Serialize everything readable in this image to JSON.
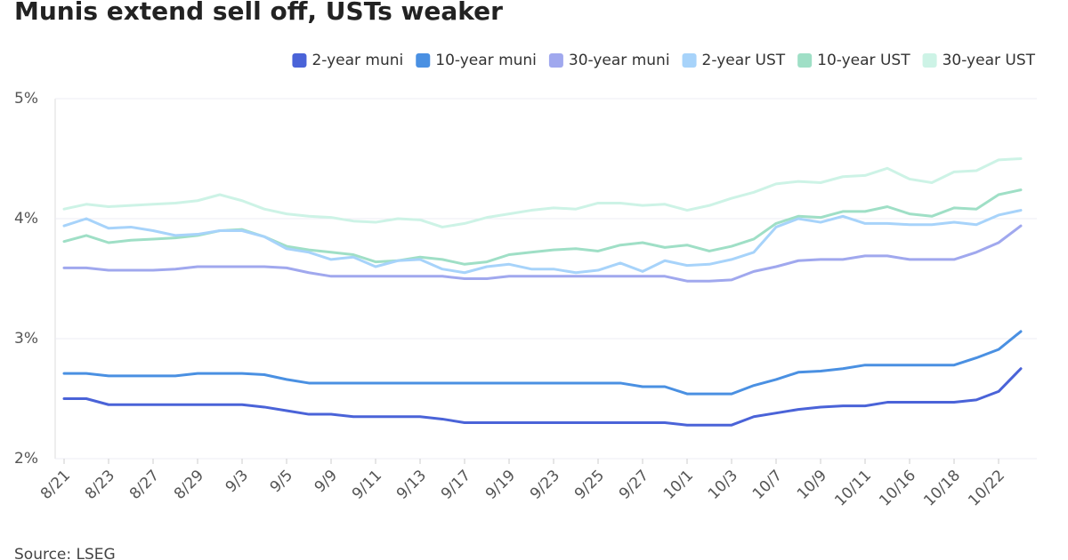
{
  "chart_data": {
    "type": "line",
    "title": "Munis extend sell off, USTs weaker",
    "source": "Source: LSEG",
    "categories": [
      "8/21",
      null,
      "8/23",
      null,
      "8/27",
      null,
      "8/29",
      null,
      "9/3",
      null,
      "9/5",
      null,
      "9/9",
      null,
      "9/11",
      null,
      "9/13",
      null,
      "9/17",
      null,
      "9/19",
      null,
      "9/23",
      null,
      "9/25",
      null,
      "9/27",
      null,
      "10/1",
      null,
      "10/3",
      null,
      "10/7",
      null,
      "10/9",
      null,
      "10/11",
      null,
      "10/16",
      null,
      "10/18",
      null,
      "10/22",
      null
    ],
    "series": [
      {
        "name": "2-year muni",
        "color": "#4a63d8",
        "values": [
          2.5,
          2.5,
          2.45,
          2.45,
          2.45,
          2.45,
          2.45,
          2.45,
          2.45,
          2.43,
          2.4,
          2.37,
          2.37,
          2.35,
          2.35,
          2.35,
          2.35,
          2.33,
          2.3,
          2.3,
          2.3,
          2.3,
          2.3,
          2.3,
          2.3,
          2.3,
          2.3,
          2.3,
          2.28,
          2.28,
          2.28,
          2.35,
          2.38,
          2.41,
          2.43,
          2.44,
          2.44,
          2.47,
          2.47,
          2.47,
          2.47,
          2.49,
          2.56,
          2.75
        ]
      },
      {
        "name": "10-year muni",
        "color": "#4a90e2",
        "values": [
          2.71,
          2.71,
          2.69,
          2.69,
          2.69,
          2.69,
          2.71,
          2.71,
          2.71,
          2.7,
          2.66,
          2.63,
          2.63,
          2.63,
          2.63,
          2.63,
          2.63,
          2.63,
          2.63,
          2.63,
          2.63,
          2.63,
          2.63,
          2.63,
          2.63,
          2.63,
          2.6,
          2.6,
          2.54,
          2.54,
          2.54,
          2.61,
          2.66,
          2.72,
          2.73,
          2.75,
          2.78,
          2.78,
          2.78,
          2.78,
          2.78,
          2.84,
          2.91,
          3.06
        ]
      },
      {
        "name": "30-year muni",
        "color": "#a0a8ee",
        "values": [
          3.59,
          3.59,
          3.57,
          3.57,
          3.57,
          3.58,
          3.6,
          3.6,
          3.6,
          3.6,
          3.59,
          3.55,
          3.52,
          3.52,
          3.52,
          3.52,
          3.52,
          3.52,
          3.5,
          3.5,
          3.52,
          3.52,
          3.52,
          3.52,
          3.52,
          3.52,
          3.52,
          3.52,
          3.48,
          3.48,
          3.49,
          3.56,
          3.6,
          3.65,
          3.66,
          3.66,
          3.69,
          3.69,
          3.66,
          3.66,
          3.66,
          3.72,
          3.8,
          3.94
        ]
      },
      {
        "name": "2-year UST",
        "color": "#a7d3fa",
        "values": [
          3.94,
          4.0,
          3.92,
          3.93,
          3.9,
          3.86,
          3.87,
          3.9,
          3.9,
          3.85,
          3.75,
          3.72,
          3.66,
          3.68,
          3.6,
          3.65,
          3.66,
          3.58,
          3.55,
          3.6,
          3.62,
          3.58,
          3.58,
          3.55,
          3.57,
          3.63,
          3.56,
          3.65,
          3.61,
          3.62,
          3.66,
          3.72,
          3.93,
          4.0,
          3.97,
          4.02,
          3.96,
          3.96,
          3.95,
          3.95,
          3.97,
          3.95,
          4.03,
          4.07
        ]
      },
      {
        "name": "10-year UST",
        "color": "#9fdfc6",
        "values": [
          3.81,
          3.86,
          3.8,
          3.82,
          3.83,
          3.84,
          3.86,
          3.9,
          3.91,
          3.85,
          3.77,
          3.74,
          3.72,
          3.7,
          3.64,
          3.65,
          3.68,
          3.66,
          3.62,
          3.64,
          3.7,
          3.72,
          3.74,
          3.75,
          3.73,
          3.78,
          3.8,
          3.76,
          3.78,
          3.73,
          3.77,
          3.83,
          3.96,
          4.02,
          4.01,
          4.06,
          4.06,
          4.1,
          4.04,
          4.02,
          4.09,
          4.08,
          4.2,
          4.24
        ]
      },
      {
        "name": "30-year UST",
        "color": "#cdf3e6",
        "values": [
          4.08,
          4.12,
          4.1,
          4.11,
          4.12,
          4.13,
          4.15,
          4.2,
          4.15,
          4.08,
          4.04,
          4.02,
          4.01,
          3.98,
          3.97,
          4.0,
          3.99,
          3.93,
          3.96,
          4.01,
          4.04,
          4.07,
          4.09,
          4.08,
          4.13,
          4.13,
          4.11,
          4.12,
          4.07,
          4.11,
          4.17,
          4.22,
          4.29,
          4.31,
          4.3,
          4.35,
          4.36,
          4.42,
          4.33,
          4.3,
          4.39,
          4.4,
          4.49,
          4.5
        ]
      }
    ],
    "ylim": [
      2,
      5
    ],
    "yticks": [
      {
        "value": 2,
        "label": "2%"
      },
      {
        "value": 3,
        "label": "3%"
      },
      {
        "value": 4,
        "label": "4%"
      },
      {
        "value": 5,
        "label": "5%"
      }
    ],
    "grid": true
  }
}
